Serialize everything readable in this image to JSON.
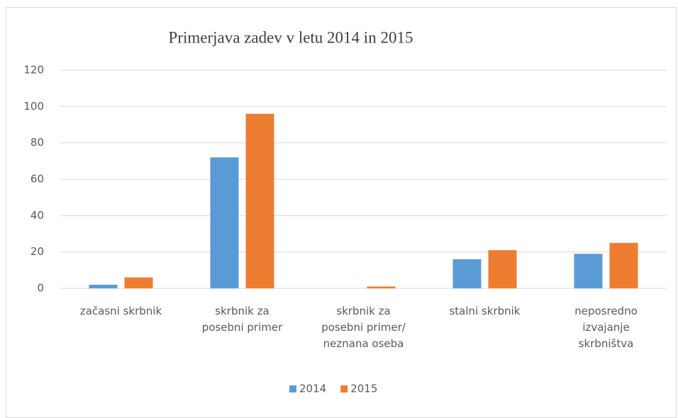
{
  "chart_data": {
    "type": "bar",
    "title": "Primerjava zadev v letu 2014 in 2015",
    "categories": [
      "začasni skrbnik",
      "skrbnik za\nposebni primer",
      "skrbnik za\nposebni primer/\nneznana oseba",
      "stalni skrbnik",
      "neposredno\nizvajanje\nskrbništva"
    ],
    "series": [
      {
        "name": "2014",
        "color": "#5b9bd5",
        "values": [
          2,
          72,
          0,
          16,
          19
        ]
      },
      {
        "name": "2015",
        "color": "#ed7d31",
        "values": [
          6,
          96,
          1,
          21,
          25
        ]
      }
    ],
    "ylim": [
      0,
      120
    ],
    "yticks": [
      0,
      20,
      40,
      60,
      80,
      100,
      120
    ],
    "grid": true,
    "legend": "bottom"
  }
}
